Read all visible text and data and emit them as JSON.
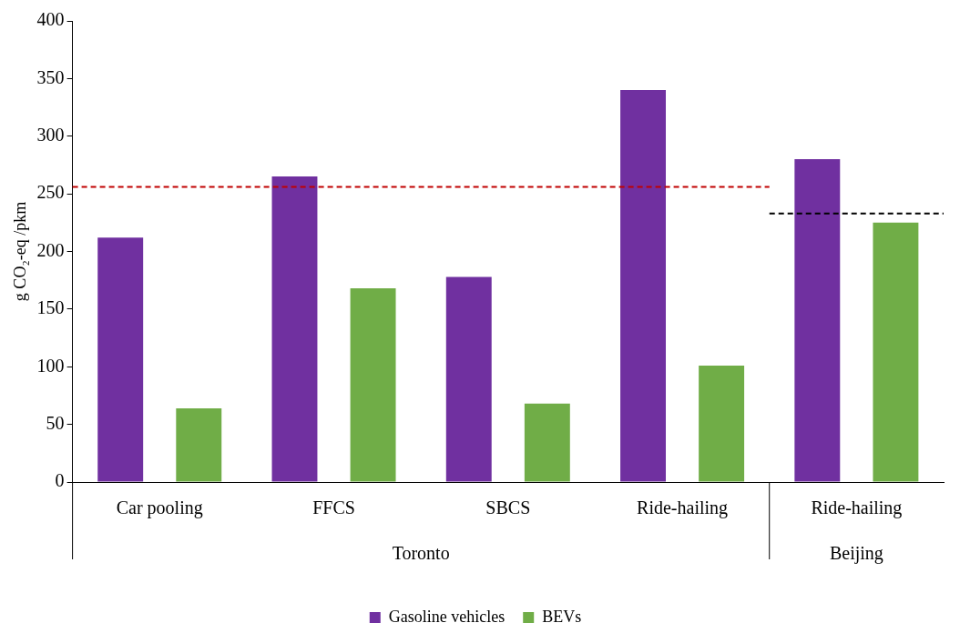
{
  "chart_data": {
    "type": "bar",
    "ylabel": "g CO₂-eq /pkm",
    "categories": [
      "Car pooling",
      "FFCS",
      "SBCS",
      "Ride-hailing",
      "Ride-hailing"
    ],
    "series": [
      {
        "name": "Gasoline vehicles",
        "color": "#7030a0",
        "values": [
          212,
          265,
          178,
          340,
          280
        ]
      },
      {
        "name": "BEVs",
        "color": "#70ad47",
        "values": [
          64,
          168,
          68,
          101,
          225
        ]
      }
    ],
    "ylim": [
      0,
      400
    ],
    "yticks": [
      0,
      50,
      100,
      150,
      200,
      250,
      300,
      350,
      400
    ],
    "ref_lines": [
      {
        "axis": "y",
        "value": 256,
        "color": "#c00000",
        "line_style": "dashed"
      },
      {
        "axis": "y",
        "value": 233,
        "color": "#000000",
        "line_style": "dashed"
      }
    ],
    "annotations": [
      "Toronto",
      "Beijing"
    ],
    "grid": false,
    "legend": "bottom"
  }
}
